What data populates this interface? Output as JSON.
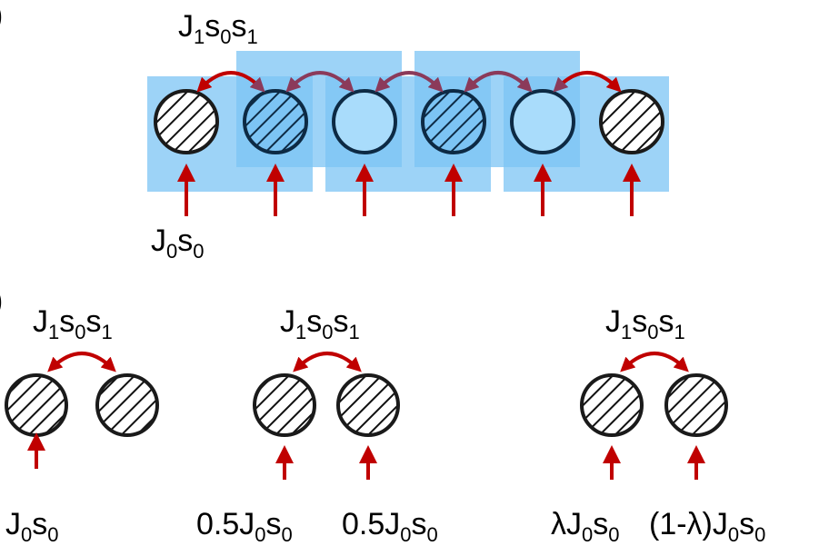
{
  "panel_a": {
    "panel_letter": "a",
    "coupling_label": {
      "J": "J",
      "sub1": "1",
      "s": "s",
      "sub0": "0",
      "s2": "s",
      "sub2": "1"
    },
    "field_label": {
      "J": "J",
      "sub0": "0",
      "s": "s",
      "sub1": "0"
    },
    "spins": [
      "hatched",
      "hatched",
      "open",
      "hatched",
      "open",
      "hatched"
    ]
  },
  "panel_b": {
    "panel_letter": "b",
    "groups": [
      {
        "coupling_label": {
          "J": "J",
          "sub1": "1",
          "s": "s",
          "sub0": "0",
          "s2": "s",
          "sub2": "1"
        },
        "field_left": {
          "pre": "",
          "J": "J",
          "sub0": "0",
          "s": "s",
          "sub1": "0"
        },
        "field_right": null
      },
      {
        "coupling_label": {
          "J": "J",
          "sub1": "1",
          "s": "s",
          "sub0": "0",
          "s2": "s",
          "sub2": "1"
        },
        "field_left": {
          "pre": "0.5",
          "J": "J",
          "sub0": "0",
          "s": "s",
          "sub1": "0"
        },
        "field_right": {
          "pre": "0.5",
          "J": "J",
          "sub0": "0",
          "s": "s",
          "sub1": "0"
        }
      },
      {
        "coupling_label": {
          "J": "J",
          "sub1": "1",
          "s": "s",
          "sub0": "0",
          "s2": "s",
          "sub2": "1"
        },
        "field_left": {
          "pre": "λ",
          "J": "J",
          "sub0": "0",
          "s": "s",
          "sub1": "0"
        },
        "field_right": {
          "pre": "(1-λ)",
          "J": "J",
          "sub0": "0",
          "s": "s",
          "sub1": "0"
        }
      }
    ]
  },
  "colors": {
    "box_fill": "#7cc4f4",
    "arrow_red": "#c00000",
    "arrow_purple": "#8b3a5a",
    "spin_stroke": "#1a1a1a",
    "spin_open_fill": "#a9dcfb"
  }
}
